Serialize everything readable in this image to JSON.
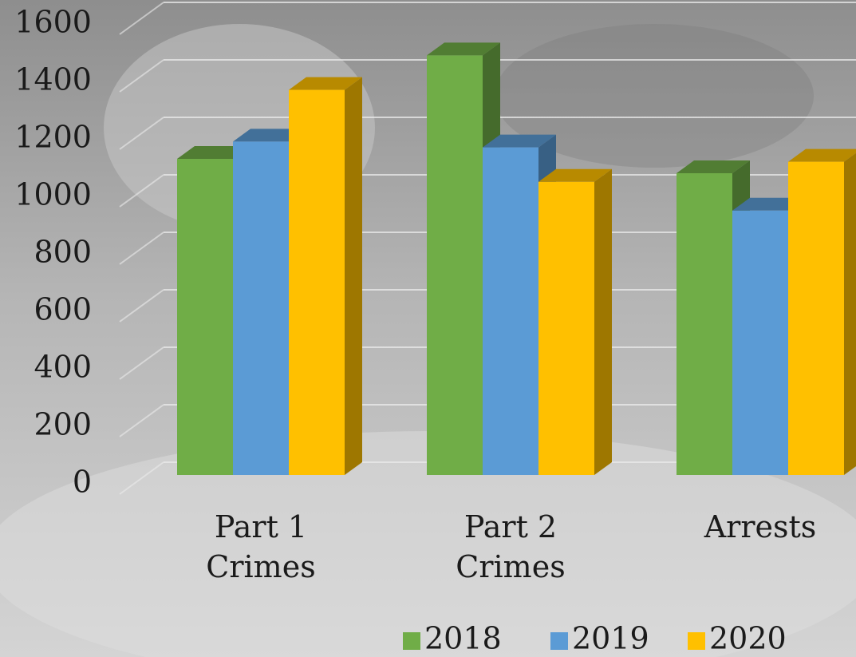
{
  "chart_data": {
    "type": "bar",
    "categories": [
      "Part 1 Crimes",
      "Part 2 Crimes",
      "Arrests"
    ],
    "series": [
      {
        "name": "2018",
        "color": "#70ad47",
        "values": [
          1100,
          1460,
          1050
        ]
      },
      {
        "name": "2019",
        "color": "#5b9bd5",
        "values": [
          1160,
          1140,
          920
        ]
      },
      {
        "name": "2020",
        "color": "#ffc000",
        "values": [
          1340,
          1020,
          1090
        ]
      }
    ],
    "ylim": [
      0,
      1600
    ],
    "yticks": [
      0,
      200,
      400,
      600,
      800,
      1000,
      1200,
      1400,
      1600
    ],
    "grid": true,
    "legend": "bottom"
  }
}
